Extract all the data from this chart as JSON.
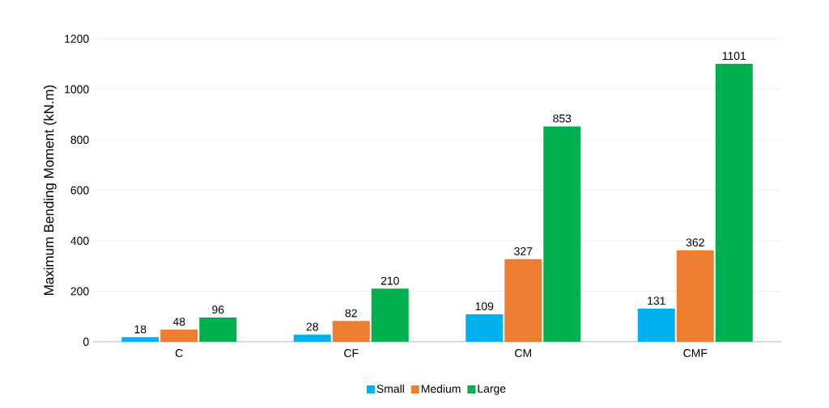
{
  "chart_data": {
    "type": "bar",
    "ylabel": "Maximum Bending Moment (kN.m)",
    "categories": [
      "C",
      "CF",
      "CM",
      "CMF"
    ],
    "series": [
      {
        "name": "Small",
        "color": "#00b0f0",
        "values": [
          18,
          28,
          109,
          131
        ]
      },
      {
        "name": "Medium",
        "color": "#ed7d31",
        "values": [
          48,
          82,
          327,
          362
        ]
      },
      {
        "name": "Large",
        "color": "#00b050",
        "values": [
          96,
          210,
          853,
          1101
        ]
      }
    ],
    "ylim": [
      0,
      1200
    ],
    "yticks": [
      0,
      200,
      400,
      600,
      800,
      1000,
      1200
    ],
    "grid": "y",
    "legend": "bottom",
    "data_labels": true
  }
}
